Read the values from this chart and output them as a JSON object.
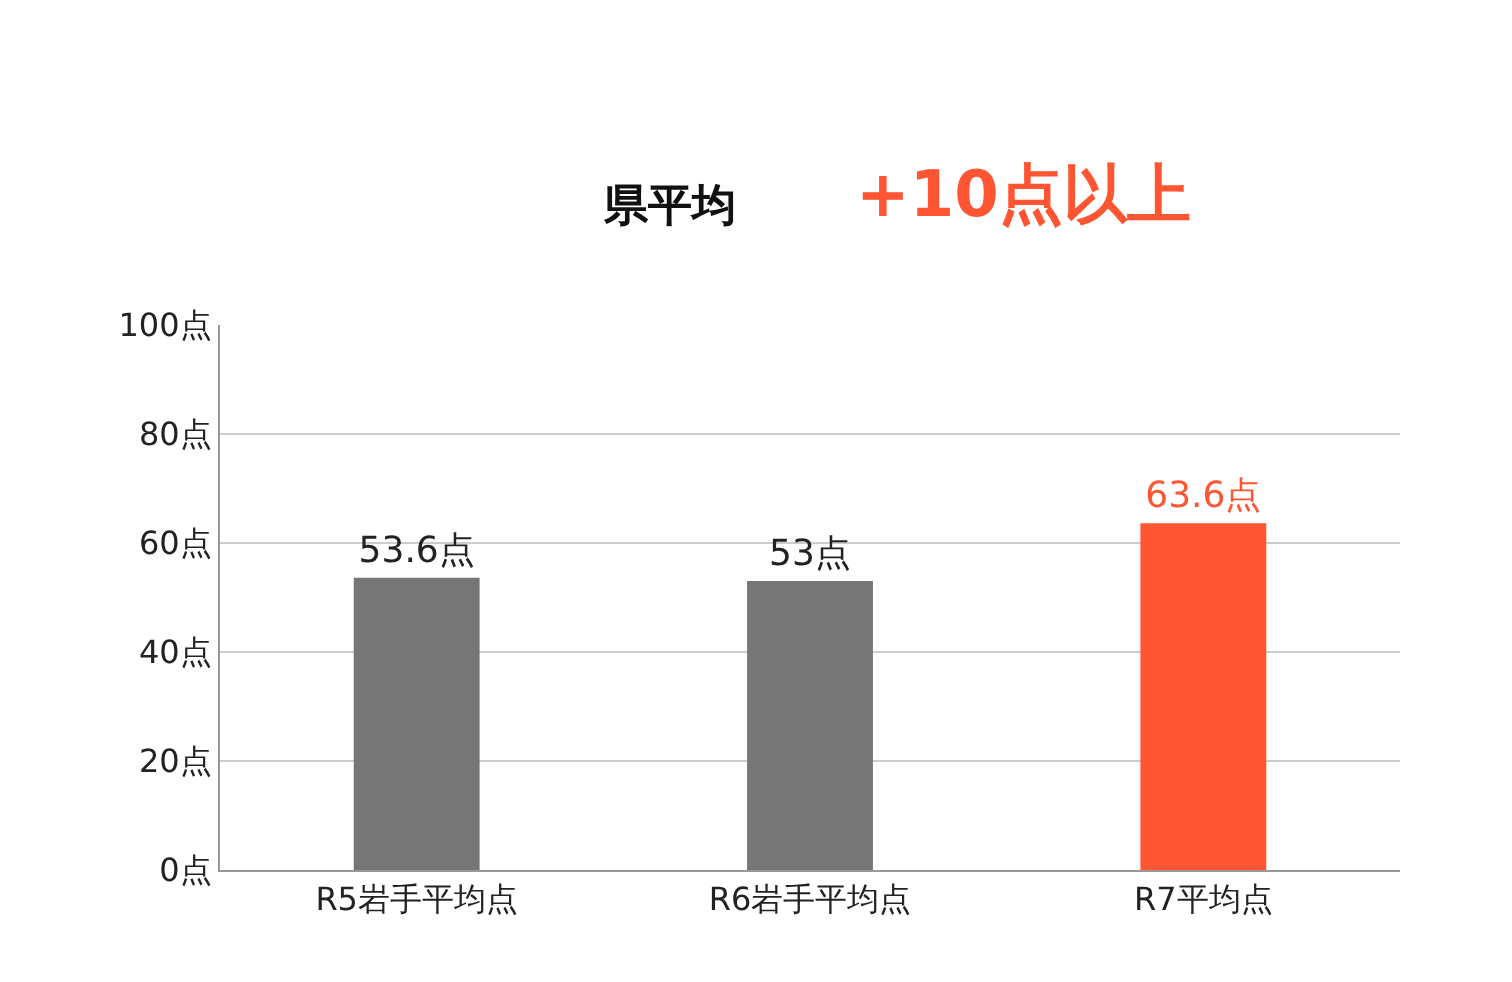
{
  "chart_data": {
    "type": "bar",
    "categories": [
      "R5岩手平均点",
      "R6岩手平均点",
      "R7平均点"
    ],
    "values": [
      53.6,
      53,
      63.6
    ],
    "colors": [
      "#767676",
      "#767676",
      "#ff5533"
    ],
    "value_labels": [
      "53.6点",
      "53点",
      "63.6点"
    ],
    "ylim": [
      0,
      100
    ],
    "yticks": [
      {
        "value": 0,
        "label": "0点"
      },
      {
        "value": 20,
        "label": "20点"
      },
      {
        "value": 40,
        "label": "40点"
      },
      {
        "value": 60,
        "label": "60点"
      },
      {
        "value": 80,
        "label": "80点"
      },
      {
        "value": 100,
        "label": "100点"
      }
    ],
    "grid": "y",
    "annotations": [
      "県平均",
      "+10点以上"
    ]
  }
}
